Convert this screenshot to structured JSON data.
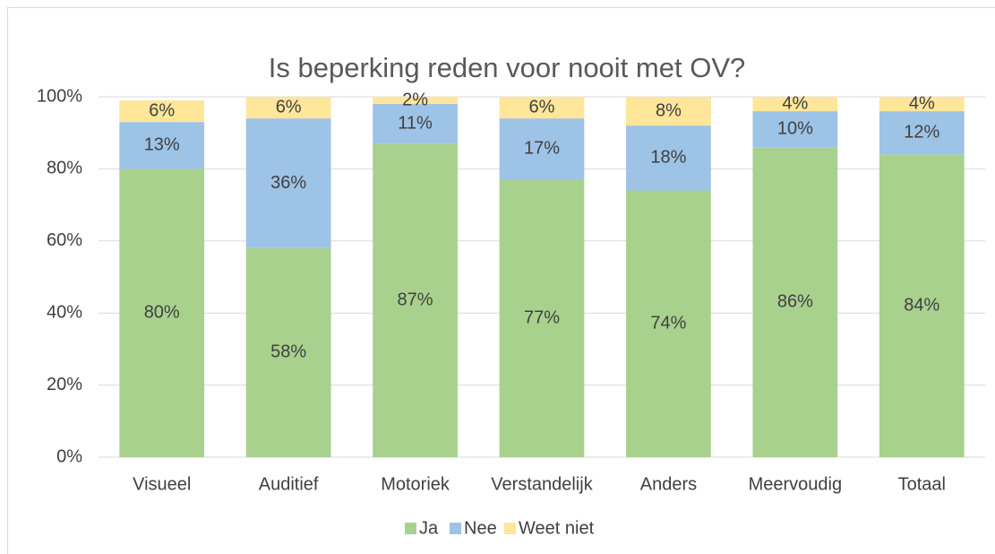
{
  "chart_data": {
    "type": "stacked_bar",
    "title": "Is beperking reden voor nooit met OV?",
    "categories": [
      "Visueel",
      "Auditief",
      "Motoriek",
      "Verstandelijk",
      "Anders",
      "Meervoudig",
      "Totaal"
    ],
    "series": [
      {
        "name": "Ja",
        "color": "#a9d18e",
        "values": [
          80,
          58,
          87,
          77,
          74,
          86,
          84
        ],
        "value_labels": [
          "80%",
          "58%",
          "87%",
          "77%",
          "74%",
          "86%",
          "84%"
        ]
      },
      {
        "name": "Nee",
        "color": "#9dc3e6",
        "values": [
          13,
          36,
          11,
          17,
          18,
          10,
          12
        ],
        "value_labels": [
          "13%",
          "36%",
          "11%",
          "17%",
          "18%",
          "10%",
          "12%"
        ]
      },
      {
        "name": "Weet niet",
        "color": "#ffe699",
        "values": [
          6,
          6,
          2,
          6,
          8,
          4,
          4
        ],
        "value_labels": [
          "6%",
          "6%",
          "2%",
          "6%",
          "8%",
          "4%",
          "4%"
        ]
      }
    ],
    "ylim": [
      0,
      100
    ],
    "yticks": [
      {
        "value": 0,
        "label": "0%"
      },
      {
        "value": 20,
        "label": "20%"
      },
      {
        "value": 40,
        "label": "40%"
      },
      {
        "value": 60,
        "label": "60%"
      },
      {
        "value": 80,
        "label": "80%"
      },
      {
        "value": 100,
        "label": "100%"
      }
    ],
    "grid": true,
    "legend": "bottom"
  }
}
